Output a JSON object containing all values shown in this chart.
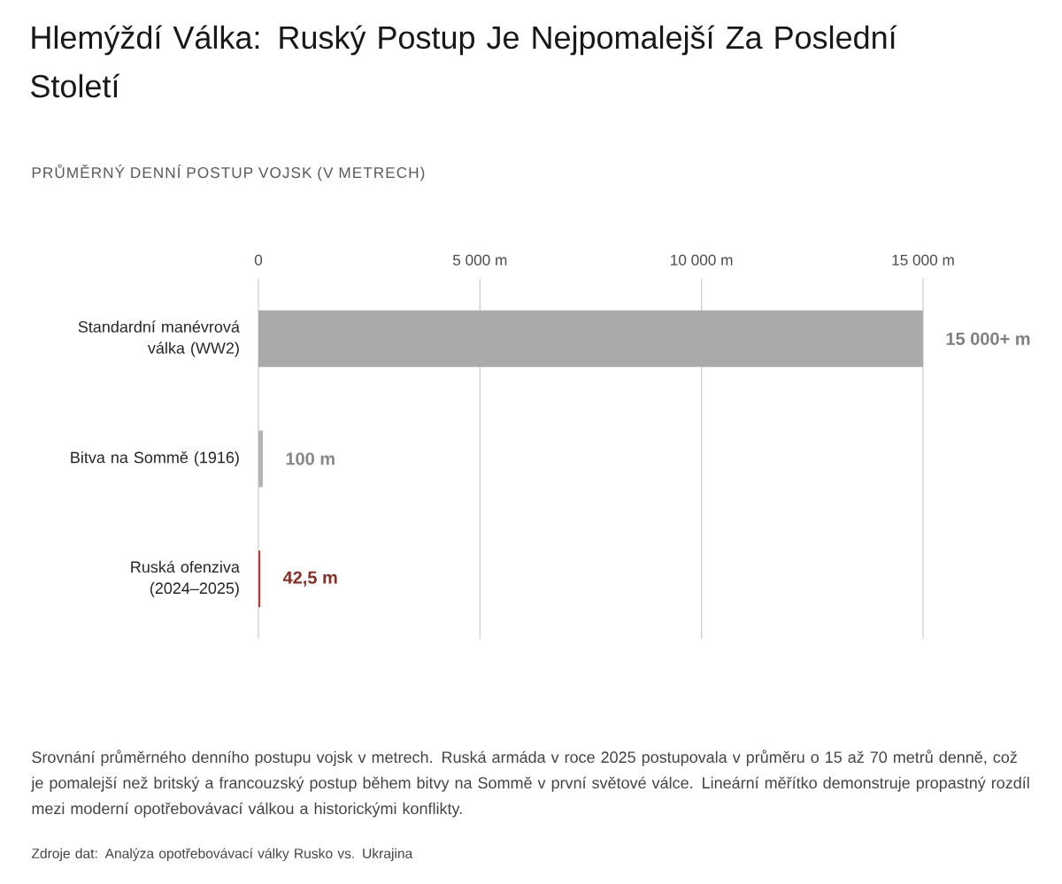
{
  "chart_data": {
    "type": "bar",
    "orientation": "horizontal",
    "title": "Hlemýždí Válka: Ruský Postup Je Nejpomalejší Za Poslední Století",
    "subtitle": "PRŮMĚRNÝ DENNÍ POSTUP VOJSK (V METRECH)",
    "categories": [
      "Standardní manévrová válka (WW2)",
      "Bitva na Sommě (1916)",
      "Ruská ofenziva (2024–2025)"
    ],
    "values": [
      15000,
      100,
      42.5
    ],
    "colors": [
      "#aaaaaa",
      "#b4b4b4",
      "#c0392b"
    ],
    "value_labels": [
      "15 000+ m",
      "100 m",
      "42,5 m"
    ],
    "xlim": [
      0,
      15000
    ],
    "xticks": [
      0,
      {
        "value": 5000,
        "label": "5 000 m"
      },
      {
        "value": 10000,
        "label": "10 000 m"
      },
      {
        "value": 15000,
        "label": "15 000 m"
      }
    ],
    "grid": "x",
    "annotations": [
      "Srovnání průměrného denního postupu vojsk v metrech. Ruská armáda v roce 2025 postupovala v průměru o 15 až 70 metrů denně, což je pomalejší než britský a francouzský postup během bitvy na Sommě v první světové válce. Lineární měřítko demonstruje propastný rozdíl mezi moderní opotřebovávací válkou a historickými konflikty.",
      "Zdroje dat: Analýza opotřebovávací války Rusko vs. Ukrajina"
    ]
  }
}
